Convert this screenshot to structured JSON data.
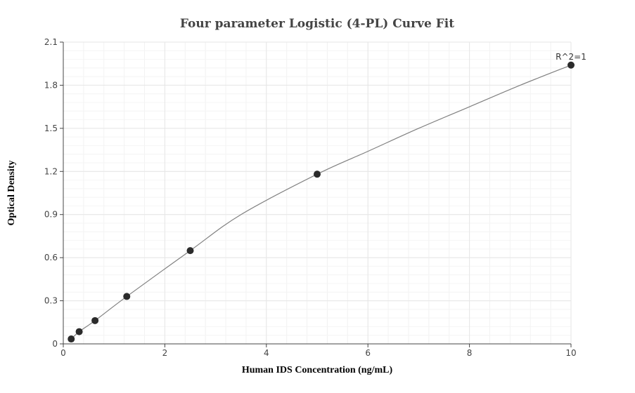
{
  "chart_data": {
    "type": "scatter",
    "title": "Four parameter Logistic (4-PL) Curve Fit",
    "xlabel": "Human IDS Concentration (ng/mL)",
    "ylabel": "Optical Density",
    "xlim": [
      0,
      10
    ],
    "ylim": [
      0,
      2.1
    ],
    "x_ticks": [
      0,
      2,
      4,
      6,
      8,
      10
    ],
    "y_ticks": [
      0,
      0.3,
      0.6,
      0.9,
      1.2,
      1.5,
      1.8,
      2.1
    ],
    "x_tick_labels": [
      "0",
      "2",
      "4",
      "6",
      "8",
      "10"
    ],
    "y_tick_labels": [
      "0",
      "0.3",
      "0.6",
      "0.9",
      "1.2",
      "1.5",
      "1.8",
      "2.1"
    ],
    "grid": true,
    "legend": "none",
    "points": {
      "x": [
        0.156,
        0.313,
        0.625,
        1.25,
        2.5,
        5,
        10
      ],
      "y": [
        0.034,
        0.085,
        0.162,
        0.33,
        0.649,
        1.181,
        1.94
      ]
    },
    "fit_curve": {
      "model": "4PL",
      "x": [
        0.156,
        0.313,
        0.625,
        1.25,
        2.5,
        3.5,
        5,
        6,
        7,
        8,
        9,
        10
      ],
      "y": [
        0.034,
        0.085,
        0.162,
        0.33,
        0.649,
        0.9,
        1.181,
        1.34,
        1.5,
        1.65,
        1.8,
        1.94
      ]
    },
    "annotation": "R^2=1",
    "colors": {
      "point": "#2b2b2b",
      "curve": "#808080",
      "grid": "#e6e6e6",
      "axis": "#444444"
    }
  }
}
